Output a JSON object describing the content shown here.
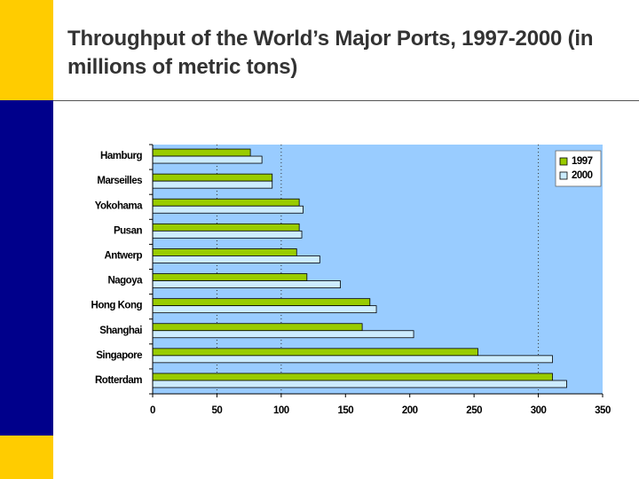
{
  "slide": {
    "title": "Throughput of the World’s Major Ports, 1997-2000 (in millions of metric tons)"
  },
  "colors": {
    "accent_yellow": "#FFCC00",
    "accent_navy": "#00008B",
    "plot_background": "#99CCFF",
    "series_1997": "#99CC00",
    "series_2000": "#CCECFF"
  },
  "chart_data": {
    "type": "bar",
    "orientation": "horizontal",
    "categories": [
      "Hamburg",
      "Marseilles",
      "Yokohama",
      "Pusan",
      "Antwerp",
      "Nagoya",
      "Hong Kong",
      "Shanghai",
      "Singapore",
      "Rotterdam"
    ],
    "series": [
      {
        "name": "1997",
        "color": "#99CC00",
        "values": [
          76,
          93,
          114,
          114,
          112,
          120,
          169,
          163,
          253,
          311
        ]
      },
      {
        "name": "2000",
        "color": "#CCECFF",
        "values": [
          85,
          93,
          117,
          116,
          130,
          146,
          174,
          203,
          311,
          322
        ]
      }
    ],
    "xlim": [
      0,
      350
    ],
    "xticks": [
      "0",
      "50",
      "100",
      "150",
      "200",
      "250",
      "300",
      "350"
    ],
    "grid": "dotted vertical at 50, 100, 300",
    "legend_position": "top-right"
  }
}
